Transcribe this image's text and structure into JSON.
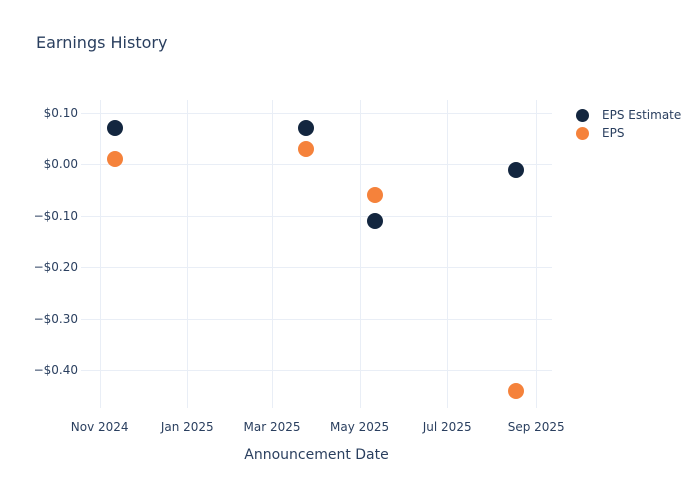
{
  "colors": {
    "navy": "#13263f",
    "orange": "#f5823b",
    "text": "#2a3f5f",
    "grid": "#e9eef6",
    "background": "#ffffff"
  },
  "chart_data": {
    "type": "scatter",
    "title": "Earnings History",
    "xlabel": "Announcement Date",
    "ylabel": "",
    "grid": true,
    "legend_position": "outside-top-right",
    "marker_size_px": 16,
    "xlim": [
      "2024-10-19",
      "2025-09-12"
    ],
    "ylim": [
      -0.473,
      0.125
    ],
    "x_ticks": [
      {
        "label": "Nov 2024",
        "date": "2024-11-01"
      },
      {
        "label": "Jan 2025",
        "date": "2025-01-01"
      },
      {
        "label": "Mar 2025",
        "date": "2025-03-01"
      },
      {
        "label": "May 2025",
        "date": "2025-05-01"
      },
      {
        "label": "Jul 2025",
        "date": "2025-07-01"
      },
      {
        "label": "Sep 2025",
        "date": "2025-09-01"
      }
    ],
    "y_ticks": [
      {
        "label": "$0.10",
        "value": 0.1
      },
      {
        "label": "$0.00",
        "value": 0.0
      },
      {
        "label": "−$0.10",
        "value": -0.1
      },
      {
        "label": "−$0.20",
        "value": -0.2
      },
      {
        "label": "−$0.30",
        "value": -0.3
      },
      {
        "label": "−$0.40",
        "value": -0.4
      }
    ],
    "series": [
      {
        "name": "EPS Estimate",
        "color": "#13263f",
        "points": [
          {
            "date": "2024-11-12",
            "value": 0.07
          },
          {
            "date": "2025-03-25",
            "value": 0.07
          },
          {
            "date": "2025-05-12",
            "value": -0.11
          },
          {
            "date": "2025-08-18",
            "value": -0.01
          }
        ]
      },
      {
        "name": "EPS",
        "color": "#f5823b",
        "points": [
          {
            "date": "2024-11-12",
            "value": 0.01
          },
          {
            "date": "2025-03-25",
            "value": 0.03
          },
          {
            "date": "2025-05-12",
            "value": -0.06
          },
          {
            "date": "2025-08-18",
            "value": -0.44
          }
        ]
      }
    ]
  }
}
